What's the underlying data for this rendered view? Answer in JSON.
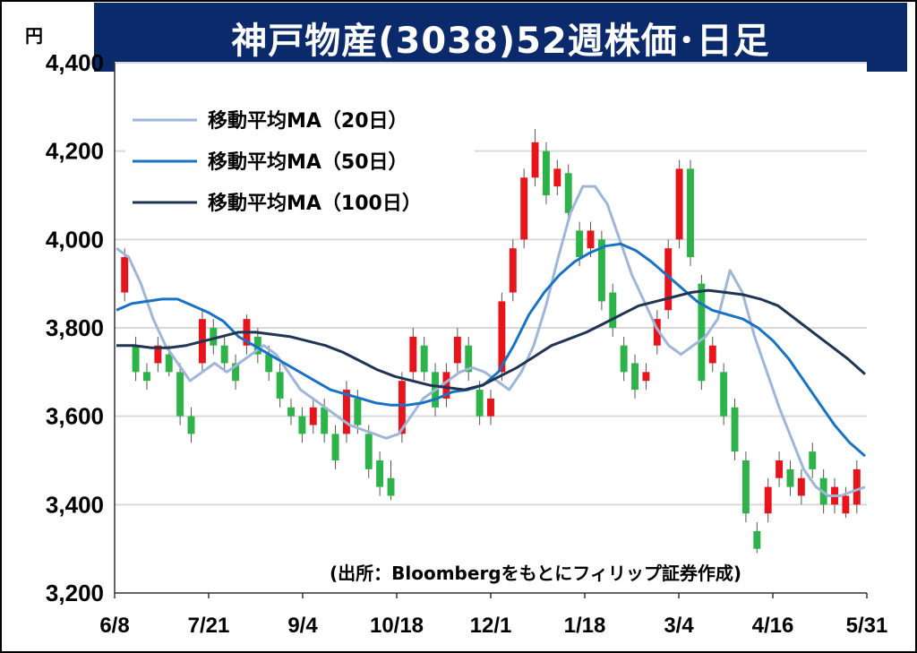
{
  "title": "神戸物産(3038)52週株価･日足",
  "unit": "円",
  "source": "(出所：Bloombergをもとにフィリップ証券作成)",
  "colors": {
    "title_bg": "#0a2a6b",
    "up": "#e8141b",
    "down": "#2db34a",
    "ma20": "#9fb6d9",
    "ma50": "#1a73c2",
    "ma100": "#1f3553",
    "grid": "#d9d9d9"
  },
  "chart_data": {
    "type": "candlestick",
    "xlabel": "",
    "ylabel": "",
    "ylim": [
      3200,
      4400
    ],
    "yticks": [
      "3,200",
      "3,400",
      "3,600",
      "3,800",
      "4,000",
      "4,200",
      "4,400"
    ],
    "ytick_values": [
      3200,
      3400,
      3600,
      3800,
      4000,
      4200,
      4400
    ],
    "xticks": [
      "6/8",
      "7/21",
      "9/4",
      "10/18",
      "12/1",
      "1/18",
      "3/4",
      "4/16",
      "5/31"
    ],
    "grid": "horizontal",
    "legend_position": "top-left",
    "series": [
      {
        "name": "移動平均MA（20日）",
        "key": "ma20",
        "values": [
          3980,
          3960,
          3900,
          3820,
          3760,
          3720,
          3680,
          3700,
          3720,
          3700,
          3720,
          3740,
          3760,
          3740,
          3700,
          3660,
          3640,
          3620,
          3600,
          3580,
          3570,
          3560,
          3550,
          3560,
          3600,
          3640,
          3660,
          3680,
          3700,
          3710,
          3700,
          3680,
          3660,
          3700,
          3760,
          3850,
          3960,
          4060,
          4120,
          4120,
          4080,
          4000,
          3920,
          3860,
          3800,
          3760,
          3740,
          3760,
          3780,
          3820,
          3930,
          3880,
          3780,
          3700,
          3620,
          3550,
          3480,
          3440,
          3420,
          3420,
          3430,
          3440
        ]
      },
      {
        "name": "移動平均MA（50日）",
        "key": "ma50",
        "values": [
          3840,
          3855,
          3860,
          3865,
          3865,
          3850,
          3835,
          3815,
          3780,
          3760,
          3740,
          3720,
          3700,
          3680,
          3660,
          3650,
          3640,
          3630,
          3625,
          3625,
          3630,
          3640,
          3655,
          3660,
          3670,
          3700,
          3760,
          3830,
          3880,
          3920,
          3950,
          3970,
          3985,
          3990,
          3975,
          3950,
          3920,
          3890,
          3860,
          3840,
          3830,
          3820,
          3800,
          3770,
          3730,
          3680,
          3630,
          3580,
          3540,
          3510
        ]
      },
      {
        "name": "移動平均MA（100日）",
        "key": "ma100",
        "values": [
          3760,
          3760,
          3755,
          3755,
          3760,
          3770,
          3780,
          3790,
          3790,
          3785,
          3780,
          3770,
          3760,
          3745,
          3725,
          3705,
          3690,
          3680,
          3670,
          3665,
          3660,
          3670,
          3690,
          3710,
          3735,
          3760,
          3775,
          3790,
          3810,
          3830,
          3850,
          3860,
          3870,
          3880,
          3885,
          3880,
          3875,
          3865,
          3850,
          3820,
          3790,
          3760,
          3730,
          3695
        ]
      }
    ],
    "candles": [
      [
        3880,
        3960,
        3860,
        3980
      ],
      [
        3760,
        3700,
        3680,
        3780
      ],
      [
        3700,
        3680,
        3660,
        3720
      ],
      [
        3720,
        3760,
        3700,
        3780
      ],
      [
        3740,
        3700,
        3690,
        3760
      ],
      [
        3700,
        3600,
        3580,
        3720
      ],
      [
        3600,
        3560,
        3540,
        3620
      ],
      [
        3720,
        3820,
        3700,
        3840
      ],
      [
        3800,
        3760,
        3740,
        3820
      ],
      [
        3760,
        3720,
        3700,
        3780
      ],
      [
        3720,
        3680,
        3660,
        3740
      ],
      [
        3760,
        3820,
        3740,
        3830
      ],
      [
        3780,
        3740,
        3720,
        3800
      ],
      [
        3740,
        3700,
        3680,
        3760
      ],
      [
        3700,
        3640,
        3620,
        3720
      ],
      [
        3620,
        3600,
        3580,
        3640
      ],
      [
        3600,
        3560,
        3540,
        3620
      ],
      [
        3580,
        3620,
        3560,
        3640
      ],
      [
        3620,
        3560,
        3540,
        3640
      ],
      [
        3560,
        3500,
        3480,
        3580
      ],
      [
        3560,
        3660,
        3540,
        3680
      ],
      [
        3640,
        3580,
        3560,
        3660
      ],
      [
        3560,
        3480,
        3460,
        3580
      ],
      [
        3500,
        3440,
        3420,
        3520
      ],
      [
        3460,
        3420,
        3410,
        3500
      ],
      [
        3560,
        3680,
        3540,
        3700
      ],
      [
        3700,
        3780,
        3680,
        3800
      ],
      [
        3760,
        3700,
        3680,
        3780
      ],
      [
        3700,
        3620,
        3600,
        3720
      ],
      [
        3640,
        3700,
        3620,
        3720
      ],
      [
        3720,
        3780,
        3700,
        3800
      ],
      [
        3760,
        3700,
        3680,
        3780
      ],
      [
        3660,
        3600,
        3580,
        3680
      ],
      [
        3600,
        3640,
        3580,
        3660
      ],
      [
        3700,
        3860,
        3680,
        3880
      ],
      [
        3880,
        3980,
        3860,
        4000
      ],
      [
        4000,
        4140,
        3980,
        4160
      ],
      [
        4140,
        4220,
        4120,
        4250
      ],
      [
        4200,
        4100,
        4080,
        4220
      ],
      [
        4120,
        4160,
        4100,
        4180
      ],
      [
        4150,
        4060,
        4040,
        4170
      ],
      [
        4020,
        3960,
        3940,
        4040
      ],
      [
        3980,
        4020,
        3960,
        4040
      ],
      [
        4000,
        3860,
        3840,
        4020
      ],
      [
        3880,
        3800,
        3780,
        3900
      ],
      [
        3760,
        3700,
        3680,
        3780
      ],
      [
        3720,
        3660,
        3640,
        3740
      ],
      [
        3680,
        3700,
        3660,
        3720
      ],
      [
        3760,
        3820,
        3740,
        3840
      ],
      [
        3840,
        3980,
        3820,
        4000
      ],
      [
        4000,
        4160,
        3980,
        4180
      ],
      [
        4160,
        3960,
        3940,
        4180
      ],
      [
        3900,
        3680,
        3660,
        3920
      ],
      [
        3720,
        3760,
        3700,
        3780
      ],
      [
        3700,
        3600,
        3580,
        3720
      ],
      [
        3620,
        3520,
        3500,
        3640
      ],
      [
        3500,
        3380,
        3360,
        3520
      ],
      [
        3340,
        3300,
        3290,
        3360
      ],
      [
        3380,
        3440,
        3360,
        3460
      ],
      [
        3460,
        3500,
        3440,
        3520
      ],
      [
        3480,
        3440,
        3420,
        3500
      ],
      [
        3420,
        3460,
        3400,
        3480
      ],
      [
        3520,
        3480,
        3460,
        3540
      ],
      [
        3460,
        3400,
        3380,
        3480
      ],
      [
        3400,
        3440,
        3380,
        3460
      ],
      [
        3380,
        3420,
        3370,
        3440
      ],
      [
        3400,
        3480,
        3380,
        3500
      ]
    ]
  }
}
